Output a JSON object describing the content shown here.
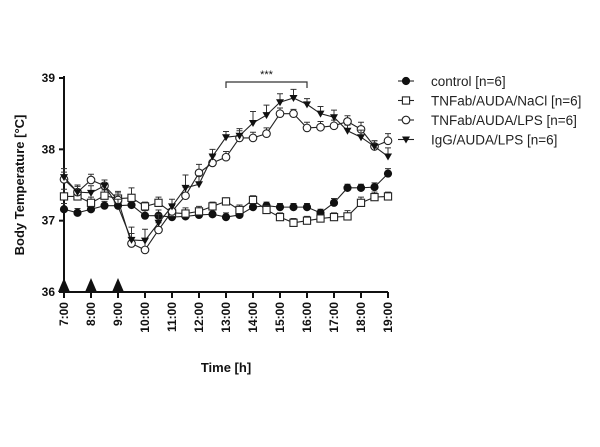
{
  "chart_data": {
    "type": "line",
    "xlabel": "Time [h]",
    "ylabel": "Body Temperature [°C]",
    "ylim": [
      36,
      39
    ],
    "yticks": [
      "36",
      "37",
      "38",
      "39"
    ],
    "xticks": [
      "7:00",
      "8:00",
      "9:00",
      "10:00",
      "11:00",
      "12:00",
      "13:00",
      "14:00",
      "15:00",
      "16:00",
      "17:00",
      "18:00",
      "19:00"
    ],
    "x_hours": [
      7,
      7.5,
      8,
      8.5,
      9,
      9.5,
      10,
      10.5,
      11,
      11.5,
      12,
      12.5,
      13,
      13.5,
      14,
      14.5,
      15,
      15.5,
      16,
      16.5,
      17,
      17.5,
      18,
      18.5,
      19
    ],
    "grid": false,
    "legend_position": "top-right",
    "series": [
      {
        "name": "control [n=6]",
        "marker": "filled-circle",
        "values": [
          37.16,
          37.11,
          37.16,
          37.21,
          37.21,
          37.22,
          37.07,
          37.07,
          37.05,
          37.06,
          37.08,
          37.09,
          37.05,
          37.08,
          37.19,
          37.21,
          37.19,
          37.19,
          37.19,
          37.11,
          37.25,
          37.46,
          37.46,
          37.47,
          37.66
        ],
        "errors": [
          0.08,
          0.06,
          0.07,
          0.06,
          0.06,
          0.08,
          0.07,
          0.08,
          0.06,
          0.06,
          0.06,
          0.06,
          0.06,
          0.07,
          0.07,
          0.05,
          0.05,
          0.05,
          0.05,
          0.05,
          0.06,
          0.05,
          0.05,
          0.06,
          0.07
        ]
      },
      {
        "name": "TNFab/AUDA/NaCl [n=6]",
        "marker": "open-square",
        "values": [
          37.34,
          37.34,
          37.25,
          37.35,
          37.31,
          37.32,
          37.2,
          37.25,
          37.11,
          37.1,
          37.13,
          37.2,
          37.27,
          37.15,
          37.29,
          37.15,
          37.05,
          36.97,
          37.0,
          37.03,
          37.05,
          37.06,
          37.25,
          37.33,
          37.34
        ],
        "errors": [
          0.1,
          0.1,
          0.08,
          0.08,
          0.1,
          0.14,
          0.06,
          0.08,
          0.06,
          0.08,
          0.07,
          0.06,
          0.05,
          0.07,
          0.06,
          0.06,
          0.06,
          0.06,
          0.06,
          0.05,
          0.06,
          0.08,
          0.08,
          0.07,
          0.06
        ]
      },
      {
        "name": "TNFab/AUDA/LPS [n=6]",
        "marker": "open-circle",
        "values": [
          37.58,
          37.4,
          37.57,
          37.49,
          37.29,
          36.68,
          36.59,
          36.87,
          37.13,
          37.35,
          37.67,
          37.81,
          37.89,
          38.16,
          38.16,
          38.22,
          38.5,
          38.5,
          38.3,
          38.31,
          38.33,
          38.39,
          38.28,
          38.04,
          38.12
        ],
        "errors": [
          0.1,
          0.08,
          0.08,
          0.08,
          0.1,
          0.14,
          0.16,
          0.1,
          0.08,
          0.12,
          0.12,
          0.1,
          0.08,
          0.1,
          0.08,
          0.08,
          0.08,
          0.06,
          0.08,
          0.08,
          0.08,
          0.08,
          0.1,
          0.08,
          0.1
        ]
      },
      {
        "name": "IgG/AUDA/LPS [n=6]",
        "marker": "filled-triangle-down",
        "values": [
          37.61,
          37.4,
          37.39,
          37.49,
          37.2,
          36.73,
          36.72,
          36.97,
          37.2,
          37.46,
          37.51,
          37.9,
          38.17,
          38.19,
          38.37,
          38.48,
          38.66,
          38.72,
          38.63,
          38.5,
          38.45,
          38.26,
          38.17,
          38.04,
          37.9
        ],
        "errors": [
          0.12,
          0.1,
          0.1,
          0.08,
          0.1,
          0.18,
          0.16,
          0.12,
          0.1,
          0.18,
          0.12,
          0.1,
          0.08,
          0.1,
          0.16,
          0.14,
          0.12,
          0.12,
          0.08,
          0.1,
          0.1,
          0.08,
          0.1,
          0.08,
          0.12
        ]
      }
    ],
    "annotations": [
      {
        "text": "***",
        "from": "13:00",
        "to": "16:00"
      }
    ],
    "arrow_markers_at": [
      "7:00",
      "8:00",
      "9:00"
    ]
  }
}
